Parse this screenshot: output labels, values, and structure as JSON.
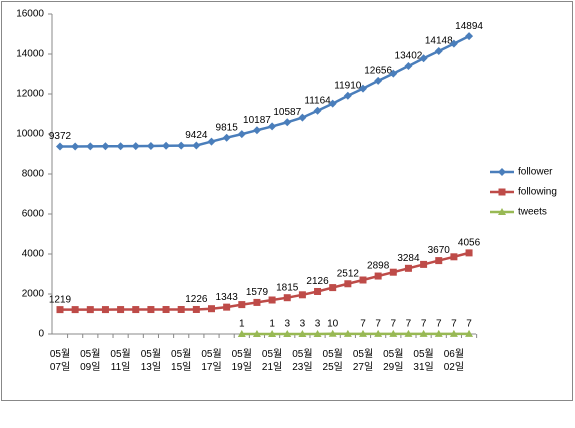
{
  "chart_data": {
    "type": "line",
    "categories": [
      "05월 07일",
      null,
      "05월 09일",
      null,
      "05월 11일",
      null,
      "05월 13일",
      null,
      "05월 15일",
      null,
      "05월 17일",
      null,
      "05월 19일",
      null,
      "05월 21일",
      null,
      "05월 23일",
      null,
      "05월 25일",
      null,
      "05월 27일",
      null,
      "05월 29일",
      null,
      "05월 31일",
      null,
      "06월 02일",
      null
    ],
    "series": [
      {
        "name": "follower",
        "color": "#4a7ebb",
        "marker": "diamond",
        "values": [
          9372,
          9375,
          9380,
          9385,
          9390,
          9395,
          9400,
          9410,
          9418,
          9424,
          9620,
          9815,
          9995,
          10187,
          10380,
          10587,
          10820,
          11164,
          11520,
          11910,
          12270,
          12656,
          13020,
          13402,
          13790,
          14148,
          14520,
          14894
        ],
        "value_labels": [
          "9372",
          null,
          null,
          null,
          null,
          null,
          null,
          null,
          null,
          "9424",
          null,
          "9815",
          null,
          "10187",
          null,
          "10587",
          null,
          "11164",
          null,
          "11910",
          null,
          "12656",
          null,
          "13402",
          null,
          "14148",
          null,
          "14894"
        ]
      },
      {
        "name": "following",
        "color": "#be4b48",
        "marker": "square",
        "values": [
          1219,
          1220,
          1220,
          1221,
          1222,
          1222,
          1223,
          1224,
          1225,
          1226,
          1265,
          1343,
          1470,
          1579,
          1700,
          1815,
          1960,
          2126,
          2320,
          2512,
          2700,
          2898,
          3090,
          3284,
          3480,
          3670,
          3860,
          4056
        ],
        "value_labels": [
          "1219",
          null,
          null,
          null,
          null,
          null,
          null,
          null,
          null,
          "1226",
          null,
          "1343",
          null,
          "1579",
          null,
          "1815",
          null,
          "2126",
          null,
          "2512",
          null,
          "2898",
          null,
          "3284",
          null,
          "3670",
          null,
          "4056"
        ]
      },
      {
        "name": "tweets",
        "color": "#98b954",
        "marker": "triangle",
        "values": [
          null,
          null,
          null,
          null,
          null,
          null,
          null,
          null,
          null,
          null,
          null,
          null,
          1,
          1,
          1,
          3,
          3,
          3,
          10,
          7,
          7,
          7,
          7,
          7,
          7,
          7,
          7,
          7
        ],
        "value_labels": [
          null,
          null,
          null,
          null,
          null,
          null,
          null,
          null,
          null,
          null,
          null,
          null,
          "1",
          null,
          "1",
          "3",
          "3",
          "3",
          "10",
          null,
          "7",
          "7",
          "7",
          "7",
          "7",
          "7",
          "7",
          "7"
        ]
      }
    ],
    "ylim": [
      0,
      16000
    ],
    "yticks": [
      0,
      2000,
      4000,
      6000,
      8000,
      10000,
      12000,
      14000,
      16000
    ],
    "grid": false,
    "legend": "right"
  }
}
